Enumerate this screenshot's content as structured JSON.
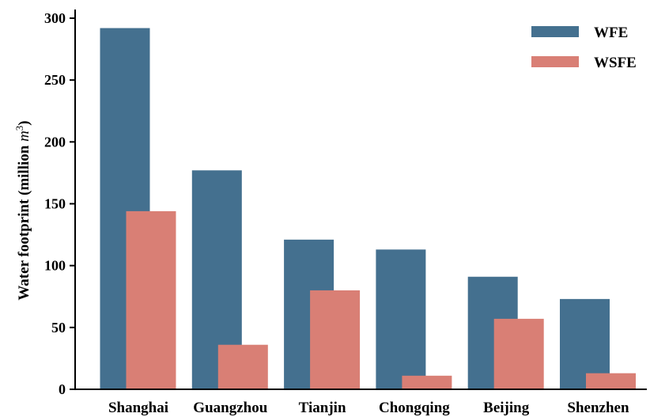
{
  "chart_data": {
    "type": "bar",
    "categories": [
      "Shanghai",
      "Guangzhou",
      "Tianjin",
      "Chongqing",
      "Beijing",
      "Shenzhen"
    ],
    "series": [
      {
        "name": "WFE",
        "color": "#44708f",
        "values": [
          292,
          177,
          121,
          113,
          91,
          73
        ]
      },
      {
        "name": "WSFE",
        "color": "#d97f75",
        "values": [
          144,
          36,
          80,
          11,
          57,
          13
        ]
      }
    ],
    "ylabel_main": "Water footprint (million ",
    "ylabel_unit": "m",
    "ylabel_exp": "3",
    "ylabel_close": ")",
    "ylim": [
      0,
      300
    ],
    "yticks": [
      "0",
      "50",
      "100",
      "150",
      "200",
      "250",
      "300"
    ],
    "grid": false,
    "legend_position": "top-right"
  }
}
